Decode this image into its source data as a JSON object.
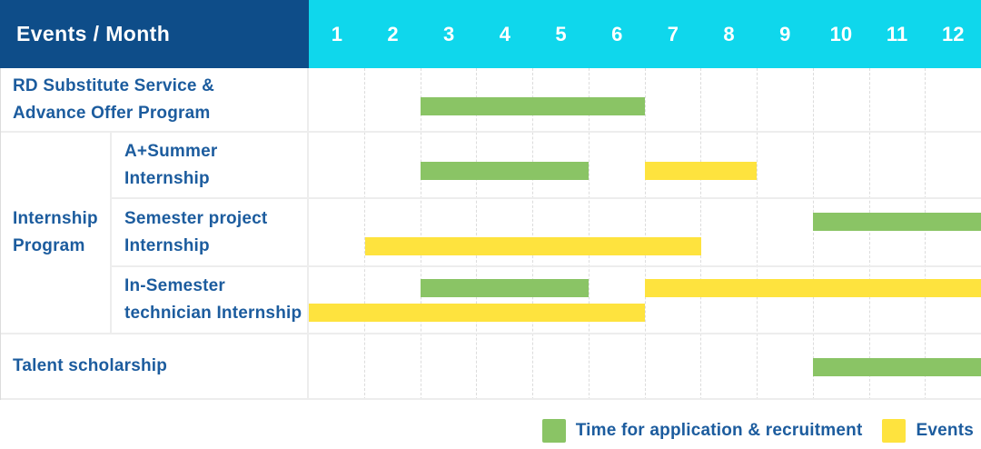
{
  "header": {
    "title": "Events / Month",
    "months": [
      "1",
      "2",
      "3",
      "4",
      "5",
      "6",
      "7",
      "8",
      "9",
      "10",
      "11",
      "12"
    ]
  },
  "group_cell": {
    "lines": [
      "Internship",
      "Program"
    ]
  },
  "legend": {
    "items": [
      {
        "key": "green",
        "label": "Time for application & recruitment"
      },
      {
        "key": "yellow",
        "label": "Events"
      }
    ]
  },
  "colors": {
    "navy": "#0e4d89",
    "cyan": "#0fd7ec",
    "green": "#8ac465",
    "yellow": "#fee33e",
    "label_text": "#1c5c9e",
    "grid_line": "#ededed"
  },
  "chart_data": {
    "type": "bar",
    "subtype": "gantt-schedule",
    "title": "Events / Month",
    "x_axis": {
      "unit": "month",
      "ticks": [
        1,
        2,
        3,
        4,
        5,
        6,
        7,
        8,
        9,
        10,
        11,
        12
      ],
      "range": [
        1,
        12
      ]
    },
    "legend": [
      "Time for application & recruitment",
      "Events"
    ],
    "series_colors": {
      "Time for application & recruitment": "#8ac465",
      "Events": "#fee33e"
    },
    "rows": [
      {
        "label": "RD Substitute Service & Advance Offer Program",
        "label_lines": [
          "RD Substitute Service &",
          "Advance Offer Program"
        ],
        "group": null,
        "bars": [
          {
            "series": "Time for application & recruitment",
            "color": "green",
            "start_month": 3,
            "end_month": 6,
            "line": 0
          }
        ]
      },
      {
        "label": "A+Summer Internship",
        "label_lines": [
          "A+Summer",
          "Internship"
        ],
        "group": "Internship Program",
        "bars": [
          {
            "series": "Time for application & recruitment",
            "color": "green",
            "start_month": 3,
            "end_month": 5,
            "line": 0
          },
          {
            "series": "Events",
            "color": "yellow",
            "start_month": 7,
            "end_month": 8,
            "line": 0
          }
        ]
      },
      {
        "label": "Semester project Internship",
        "label_lines": [
          "Semester project",
          "Internship"
        ],
        "group": "Internship Program",
        "bars": [
          {
            "series": "Time for application & recruitment",
            "color": "green",
            "start_month": 10,
            "end_month": 12,
            "line": 0
          },
          {
            "series": "Events",
            "color": "yellow",
            "start_month": 2,
            "end_month": 7,
            "line": 1
          }
        ]
      },
      {
        "label": "In-Semester technician Internship",
        "label_lines": [
          "In-Semester",
          "technician Internship"
        ],
        "group": "Internship Program",
        "bars": [
          {
            "series": "Time for application & recruitment",
            "color": "green",
            "start_month": 3,
            "end_month": 5,
            "line": 0
          },
          {
            "series": "Events",
            "color": "yellow",
            "start_month": 7,
            "end_month": 12,
            "line": 0
          },
          {
            "series": "Events",
            "color": "yellow",
            "start_month": 1,
            "end_month": 6,
            "line": 1
          }
        ]
      },
      {
        "label": "Talent scholarship",
        "label_lines": [
          "Talent scholarship"
        ],
        "group": null,
        "bars": [
          {
            "series": "Time for application & recruitment",
            "color": "green",
            "start_month": 10,
            "end_month": 12,
            "line": 0
          }
        ]
      }
    ]
  }
}
